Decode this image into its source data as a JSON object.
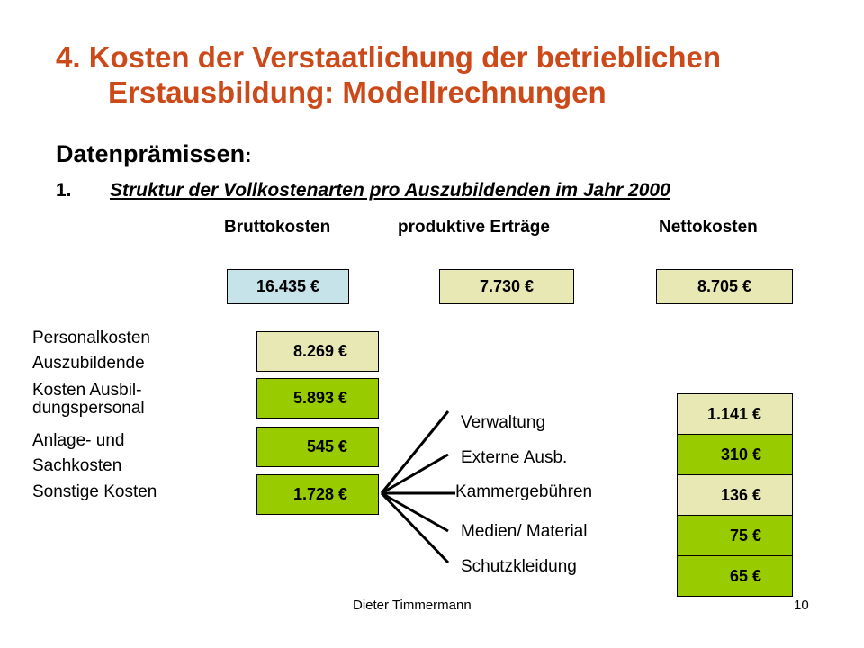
{
  "title": {
    "line1": "4. Kosten der Verstaatlichung der betrieblichen",
    "line2": "Erstausbildung: Modellrechnungen"
  },
  "subheading": {
    "text": "Datenprämissen",
    "colon": ":"
  },
  "point": {
    "number": "1.",
    "text": "Struktur der Vollkostenarten pro Auszubildenden im Jahr 2000"
  },
  "columns": {
    "brutto": {
      "label": "Bruttokosten",
      "value": "16.435 €",
      "color": "#c5e3e8"
    },
    "ertraege": {
      "label": "produktive Erträge",
      "value": "7.730 €",
      "color": "#e8e8b4"
    },
    "netto": {
      "label": "Nettokosten",
      "value": "8.705 €",
      "color": "#e8e8b4"
    }
  },
  "cost_types": [
    {
      "label_lines": [
        "Personalkosten",
        "Auszubildende"
      ],
      "value": "8.269 €",
      "color": "#e8e8b4"
    },
    {
      "label_lines": [
        "Kosten Ausbil-",
        "dungspersonal"
      ],
      "value": "5.893 €",
      "color": "#99cc00"
    },
    {
      "label_lines": [
        "Anlage- und",
        "Sachkosten"
      ],
      "value": "545 €",
      "color": "#99cc00"
    },
    {
      "label_lines": [
        "Sonstige Kosten"
      ],
      "value": "1.728 €",
      "color": "#99cc00"
    }
  ],
  "sonstige_breakdown": [
    {
      "label": "Verwaltung",
      "value": "1.141 €",
      "color": "#e8e8b4"
    },
    {
      "label": "Externe Ausb.",
      "value": "310 €",
      "color": "#99cc00"
    },
    {
      "label": "Kammergebühren",
      "value": "136 €",
      "color": "#e8e8b4"
    },
    {
      "label": "Medien/ Material",
      "value": "75 €",
      "color": "#99cc00"
    },
    {
      "label": "Schutzkleidung",
      "value": "65 €",
      "color": "#99cc00"
    }
  ],
  "footer": {
    "author": "Dieter Timmermann",
    "page": "10"
  }
}
